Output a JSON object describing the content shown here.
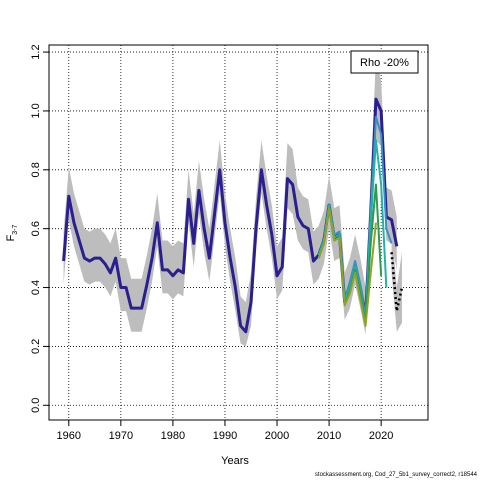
{
  "chart_data": {
    "type": "line",
    "xlabel": "Years",
    "ylabel": "F",
    "ylabel_subscript": "3-7",
    "annotation": "Rho -20%",
    "footnote": "stockassessment.org, Cod_27_5b1_survey_correct2, r18544",
    "xlim": [
      1956.2,
      2029
    ],
    "ylim": [
      -0.05,
      1.224
    ],
    "xticks": [
      1960,
      1970,
      1980,
      1990,
      2000,
      2010,
      2020
    ],
    "yticks": [
      {
        "value": 0,
        "label": "0.0"
      },
      0.2,
      0.4,
      0.6,
      0.8,
      {
        "value": 1,
        "label": "1.0"
      },
      1.2
    ],
    "grid": true,
    "series": [
      {
        "color": "#2b1f8f",
        "width": 3,
        "band_color": "#bdbdbd",
        "x": [
          1959,
          1960,
          1961,
          1962,
          1963,
          1964,
          1965,
          1966,
          1967,
          1968,
          1969,
          1970,
          1971,
          1972,
          1973,
          1974,
          1975,
          1976,
          1977,
          1978,
          1979,
          1980,
          1981,
          1982,
          1983,
          1984,
          1985,
          1986,
          1987,
          1988,
          1989,
          1990,
          1991,
          1992,
          1993,
          1994,
          1995,
          1996,
          1997,
          1998,
          1999,
          2000,
          2001,
          2002,
          2003,
          2004,
          2005,
          2006,
          2007,
          2008,
          2009,
          2010,
          2011,
          2012,
          2013,
          2014,
          2015,
          2016,
          2017,
          2018,
          2019,
          2020,
          2021,
          2022,
          2023
        ],
        "values": [
          0.49,
          0.71,
          0.62,
          0.56,
          0.5,
          0.49,
          0.5,
          0.5,
          0.48,
          0.45,
          0.5,
          0.4,
          0.4,
          0.33,
          0.33,
          0.33,
          0.41,
          0.5,
          0.62,
          0.46,
          0.46,
          0.44,
          0.46,
          0.45,
          0.7,
          0.55,
          0.73,
          0.6,
          0.5,
          0.65,
          0.8,
          0.62,
          0.5,
          0.4,
          0.27,
          0.25,
          0.35,
          0.61,
          0.8,
          0.68,
          0.58,
          0.44,
          0.47,
          0.77,
          0.75,
          0.64,
          0.61,
          0.6,
          0.49,
          0.51,
          0.56,
          0.68,
          0.57,
          0.58,
          0.35,
          0.4,
          0.48,
          0.4,
          0.3,
          0.65,
          1.04,
          1.0,
          0.64,
          0.63,
          0.54
        ],
        "ci_high": [
          0.59,
          0.81,
          0.72,
          0.66,
          0.6,
          0.59,
          0.6,
          0.6,
          0.58,
          0.55,
          0.6,
          0.5,
          0.5,
          0.43,
          0.43,
          0.43,
          0.51,
          0.6,
          0.72,
          0.56,
          0.56,
          0.54,
          0.56,
          0.55,
          0.8,
          0.65,
          0.83,
          0.7,
          0.6,
          0.75,
          0.9,
          0.72,
          0.6,
          0.5,
          0.37,
          0.35,
          0.45,
          0.71,
          0.9,
          0.78,
          0.68,
          0.54,
          0.57,
          0.89,
          0.87,
          0.74,
          0.71,
          0.7,
          0.59,
          0.61,
          0.66,
          0.78,
          0.67,
          0.68,
          0.45,
          0.5,
          0.58,
          0.5,
          0.4,
          0.78,
          1.18,
          1.1,
          0.74,
          0.73,
          0.64
        ],
        "ci_low": [
          0.41,
          0.63,
          0.54,
          0.48,
          0.42,
          0.41,
          0.42,
          0.42,
          0.4,
          0.37,
          0.42,
          0.32,
          0.32,
          0.25,
          0.25,
          0.25,
          0.33,
          0.42,
          0.54,
          0.38,
          0.38,
          0.36,
          0.38,
          0.37,
          0.62,
          0.47,
          0.65,
          0.52,
          0.42,
          0.57,
          0.72,
          0.54,
          0.42,
          0.32,
          0.21,
          0.2,
          0.27,
          0.53,
          0.72,
          0.6,
          0.5,
          0.36,
          0.39,
          0.67,
          0.65,
          0.56,
          0.53,
          0.52,
          0.41,
          0.43,
          0.48,
          0.6,
          0.49,
          0.5,
          0.29,
          0.33,
          0.41,
          0.33,
          0.24,
          0.54,
          0.9,
          0.88,
          0.56,
          0.55,
          0.46
        ]
      },
      {
        "color": "#3a8fc4",
        "width": 2,
        "x": [
          2008,
          2009,
          2010,
          2011,
          2012,
          2013,
          2014,
          2015,
          2016,
          2017,
          2018,
          2019,
          2020,
          2021,
          2022
        ],
        "values": [
          0.51,
          0.56,
          0.68,
          0.58,
          0.59,
          0.36,
          0.42,
          0.49,
          0.41,
          0.3,
          0.66,
          0.98,
          0.92,
          0.6,
          0.55
        ]
      },
      {
        "color": "#22b3a6",
        "width": 2,
        "x": [
          2008,
          2009,
          2010,
          2011,
          2012,
          2013,
          2014,
          2015,
          2016,
          2017,
          2018,
          2019,
          2020,
          2021
        ],
        "values": [
          0.51,
          0.56,
          0.68,
          0.57,
          0.58,
          0.35,
          0.4,
          0.47,
          0.39,
          0.29,
          0.62,
          0.9,
          0.75,
          0.4
        ]
      },
      {
        "color": "#2e9a4f",
        "width": 2,
        "x": [
          2008,
          2009,
          2010,
          2011,
          2012,
          2013,
          2014,
          2015,
          2016,
          2017,
          2018,
          2019,
          2020
        ],
        "values": [
          0.5,
          0.55,
          0.67,
          0.56,
          0.57,
          0.34,
          0.39,
          0.46,
          0.38,
          0.28,
          0.55,
          0.75,
          0.44
        ]
      },
      {
        "color": "#8ca428",
        "width": 2,
        "x": [
          2008,
          2009,
          2010,
          2011,
          2012,
          2013,
          2014,
          2015,
          2016,
          2017,
          2018,
          2019
        ],
        "values": [
          0.5,
          0.55,
          0.67,
          0.56,
          0.57,
          0.34,
          0.38,
          0.45,
          0.36,
          0.27,
          0.45,
          0.62
        ]
      },
      {
        "color": "#000000",
        "width": 2.5,
        "dashed": true,
        "band_color": "#bdbdbd",
        "x": [
          2022,
          2023,
          2024
        ],
        "values": [
          0.52,
          0.32,
          0.4
        ],
        "ci_high": [
          0.6,
          0.4,
          0.52
        ],
        "ci_low": [
          0.45,
          0.25,
          0.28
        ]
      }
    ]
  }
}
